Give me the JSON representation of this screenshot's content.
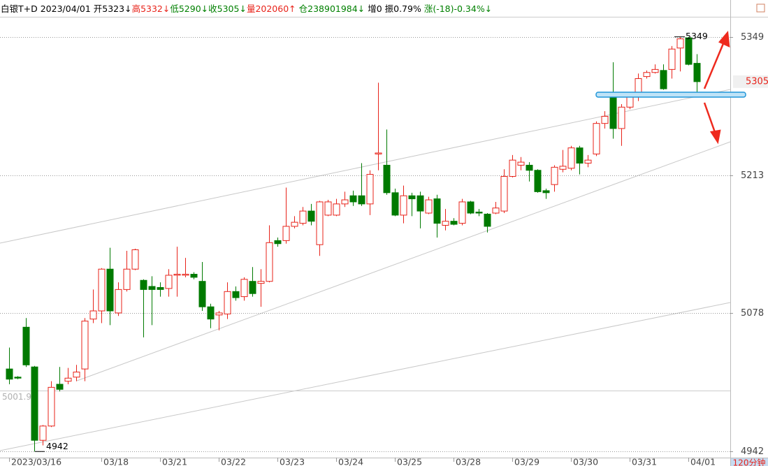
{
  "header": {
    "items": [
      {
        "text": "白银T+D",
        "color": "#000000"
      },
      {
        "text": "2023/04/01",
        "color": "#000000"
      },
      {
        "text": "开5323↓",
        "color": "#000000"
      },
      {
        "text": "高5332↓",
        "color": "#e8231a"
      },
      {
        "text": "低5290↓",
        "color": "#008000"
      },
      {
        "text": "收5305↓",
        "color": "#008000"
      },
      {
        "text": "量202060↑",
        "color": "#e8231a"
      },
      {
        "text": "仓238901984↓",
        "color": "#008000"
      },
      {
        "text": "增0",
        "color": "#000000"
      },
      {
        "text": "振0.79%",
        "color": "#000000"
      },
      {
        "text": "涨(-18)-0.34%↓",
        "color": "#008000"
      }
    ]
  },
  "chart_data": {
    "type": "candlestick",
    "up_color": "#e8231a",
    "down_color": "#007a00",
    "categories": [
      "2023/03/16",
      null,
      null,
      null,
      null,
      null,
      null,
      null,
      null,
      null,
      null,
      "03/18",
      null,
      null,
      null,
      null,
      null,
      null,
      "03/21",
      null,
      null,
      null,
      null,
      null,
      null,
      "03/22",
      null,
      null,
      null,
      null,
      null,
      null,
      "03/23",
      null,
      null,
      null,
      null,
      null,
      null,
      "03/24",
      null,
      null,
      null,
      null,
      null,
      null,
      "03/25",
      null,
      null,
      null,
      null,
      null,
      null,
      "03/28",
      null,
      null,
      null,
      null,
      null,
      null,
      "03/29",
      null,
      null,
      null,
      null,
      null,
      null,
      "03/30",
      null,
      null,
      null,
      null,
      null,
      null,
      "03/31",
      null,
      null,
      null,
      null,
      null,
      null,
      "04/01",
      null
    ],
    "open": [
      5023,
      5015,
      5064,
      5025,
      4953,
      4967,
      5008,
      5011,
      5015,
      5023,
      5072,
      5080,
      5121,
      5078,
      5101,
      5121,
      5110,
      5104,
      5103,
      5102,
      5115,
      5115,
      5116,
      5109,
      5084,
      5076,
      5077,
      5099,
      5094,
      5109,
      5107,
      5109,
      5149,
      5149,
      5163,
      5166,
      5178,
      5145,
      5174,
      5174,
      5185,
      5193,
      5193,
      5185,
      5234,
      5223,
      5196,
      5174,
      5193,
      5193,
      5176,
      5190,
      5164,
      5168,
      5166,
      5187,
      5177,
      5175,
      5176,
      5178,
      5212,
      5223,
      5223,
      5218,
      5198,
      5204,
      5219,
      5220,
      5240,
      5225,
      5234,
      5264,
      5293,
      5259,
      5280,
      5290,
      5310,
      5314,
      5316,
      5317,
      5338,
      5348,
      5323
    ],
    "high": [
      5044,
      5016,
      5073,
      5026,
      4968,
      5011,
      5025,
      5024,
      5027,
      5073,
      5101,
      5122,
      5142,
      5108,
      5139,
      5141,
      5111,
      5114,
      5108,
      5121,
      5143,
      5132,
      5118,
      5128,
      5087,
      5080,
      5108,
      5104,
      5113,
      5123,
      5121,
      5164,
      5152,
      5201,
      5173,
      5182,
      5185,
      5188,
      5189,
      5190,
      5197,
      5198,
      5225,
      5218,
      5304,
      5258,
      5200,
      5203,
      5196,
      5197,
      5192,
      5194,
      5180,
      5171,
      5190,
      5188,
      5180,
      5176,
      5187,
      5219,
      5233,
      5231,
      5226,
      5219,
      5200,
      5223,
      5238,
      5242,
      5242,
      5233,
      5266,
      5276,
      5324,
      5283,
      5293,
      5313,
      5316,
      5322,
      5322,
      5340,
      5349,
      5349,
      5332
    ],
    "low": [
      5008,
      5013,
      5025,
      4942,
      4948,
      4966,
      5001,
      5008,
      5011,
      5011,
      5068,
      5068,
      5066,
      5075,
      5099,
      5120,
      5054,
      5066,
      5094,
      5094,
      5094,
      5113,
      5111,
      5080,
      5063,
      5061,
      5072,
      5090,
      5090,
      5094,
      5084,
      5108,
      5143,
      5146,
      5161,
      5164,
      5164,
      5134,
      5173,
      5173,
      5182,
      5183,
      5183,
      5174,
      5218,
      5194,
      5173,
      5166,
      5173,
      5161,
      5175,
      5152,
      5159,
      5164,
      5164,
      5175,
      5173,
      5157,
      5175,
      5176,
      5211,
      5218,
      5207,
      5196,
      5190,
      5197,
      5216,
      5218,
      5214,
      5221,
      5232,
      5259,
      5249,
      5242,
      5278,
      5286,
      5308,
      5313,
      5297,
      5308,
      5315,
      5321,
      5290
    ],
    "close": [
      5013,
      5014,
      5027,
      4953,
      4967,
      5005,
      5003,
      5014,
      5020,
      5070,
      5080,
      5121,
      5080,
      5101,
      5121,
      5140,
      5101,
      5101,
      5101,
      5115,
      5116,
      5116,
      5113,
      5084,
      5072,
      5078,
      5099,
      5093,
      5111,
      5097,
      5109,
      5147,
      5146,
      5163,
      5167,
      5178,
      5168,
      5187,
      5187,
      5185,
      5189,
      5187,
      5185,
      5214,
      5235,
      5196,
      5174,
      5193,
      5190,
      5178,
      5189,
      5166,
      5168,
      5165,
      5187,
      5176,
      5176,
      5163,
      5181,
      5212,
      5228,
      5226,
      5218,
      5197,
      5196,
      5221,
      5222,
      5240,
      5225,
      5228,
      5264,
      5271,
      5259,
      5280,
      5290,
      5308,
      5314,
      5317,
      5298,
      5337,
      5347,
      5322,
      5305
    ],
    "ylim": [
      4936,
      5368
    ],
    "yticks": [
      4942,
      5078,
      5213,
      5349
    ],
    "grid": true,
    "reference_line": 5001.92,
    "last_price": 5305,
    "max_label": 5349,
    "min_label": 4942,
    "period": "120分钟"
  }
}
